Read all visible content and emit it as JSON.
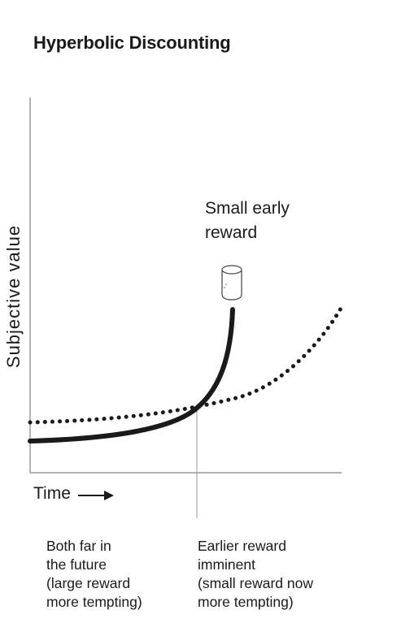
{
  "title": "Hyperbolic Discounting",
  "axes": {
    "y_label": "Subjective value",
    "x_label": "Time"
  },
  "annotation": {
    "lines": [
      "Small early",
      "reward"
    ],
    "icon": "marshmallow-icon"
  },
  "notes": {
    "far": [
      "Both far in",
      "the future",
      "(large reward",
      "more tempting)"
    ],
    "near": [
      "Earlier reward",
      "imminent",
      "(small reward now",
      "more tempting)"
    ]
  },
  "chart_data": {
    "type": "line",
    "series": [
      {
        "style": "solid",
        "shape": "hyperbolic curve rising steeply near the small early reward"
      },
      {
        "style": "dotted",
        "shape": "gentler curve rising toward the later large reward"
      }
    ],
    "grid": false,
    "marker_line": "vertical line at the crossing point"
  },
  "colors": {
    "ink": "#1a1a1a",
    "axis": "#999999"
  }
}
